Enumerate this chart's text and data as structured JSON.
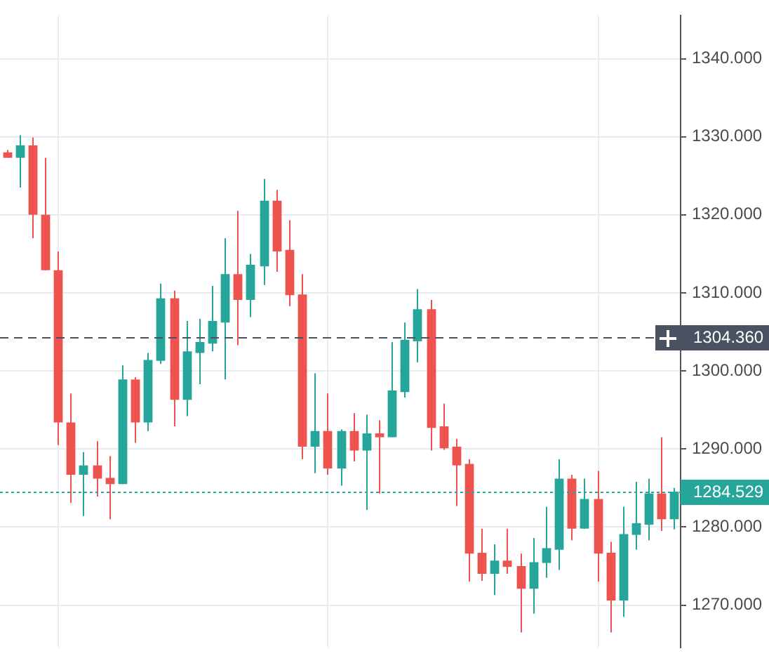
{
  "chart_data": {
    "type": "candlestick",
    "categories": [
      null,
      null,
      null,
      null,
      null,
      null,
      null,
      null,
      null,
      null,
      null,
      null,
      null,
      null,
      null,
      null,
      null,
      null,
      null,
      null,
      null,
      null,
      null,
      null,
      null,
      null,
      null,
      null,
      null,
      null,
      null,
      null,
      null,
      null,
      null,
      null,
      null,
      null,
      null,
      null,
      null,
      null,
      null,
      null,
      null,
      null,
      null,
      null,
      null,
      null,
      null,
      null,
      null
    ],
    "ohlc": [
      [
        1328.0,
        1328.3,
        1327.3,
        1327.3
      ],
      [
        1327.3,
        1330.2,
        1323.5,
        1328.9
      ],
      [
        1328.9,
        1329.9,
        1317.0,
        1320.0
      ],
      [
        1320.0,
        1327.3,
        1312.9,
        1312.9
      ],
      [
        1312.9,
        1315.3,
        1290.5,
        1293.4
      ],
      [
        1293.4,
        1297.1,
        1283.1,
        1286.7
      ],
      [
        1286.7,
        1289.6,
        1281.4,
        1287.9
      ],
      [
        1287.9,
        1291.0,
        1283.9,
        1286.2
      ],
      [
        1286.3,
        1289.1,
        1281.0,
        1285.5
      ],
      [
        1285.5,
        1300.7,
        1285.5,
        1298.9
      ],
      [
        1298.9,
        1299.2,
        1290.8,
        1293.4
      ],
      [
        1293.4,
        1302.3,
        1292.3,
        1301.4
      ],
      [
        1301.3,
        1311.2,
        1300.9,
        1309.3
      ],
      [
        1309.3,
        1310.3,
        1292.9,
        1296.3
      ],
      [
        1296.3,
        1306.4,
        1294.2,
        1302.5
      ],
      [
        1302.3,
        1306.7,
        1298.3,
        1303.7
      ],
      [
        1303.5,
        1310.9,
        1302.5,
        1306.4
      ],
      [
        1306.2,
        1317.0,
        1298.9,
        1312.4
      ],
      [
        1312.4,
        1320.5,
        1303.3,
        1309.1
      ],
      [
        1309.1,
        1315.0,
        1306.9,
        1313.6
      ],
      [
        1313.4,
        1324.6,
        1311.0,
        1321.8
      ],
      [
        1321.8,
        1323.2,
        1312.7,
        1315.3
      ],
      [
        1315.5,
        1319.3,
        1308.3,
        1309.7
      ],
      [
        1309.8,
        1312.4,
        1288.7,
        1290.3
      ],
      [
        1290.3,
        1299.7,
        1286.9,
        1292.3
      ],
      [
        1292.3,
        1297.1,
        1286.7,
        1287.5
      ],
      [
        1287.5,
        1292.5,
        1285.3,
        1292.3
      ],
      [
        1292.3,
        1294.6,
        1288.4,
        1289.8
      ],
      [
        1289.8,
        1294.4,
        1282.2,
        1292.0
      ],
      [
        1292.0,
        1293.7,
        1284.3,
        1291.5
      ],
      [
        1291.5,
        1303.7,
        1291.5,
        1297.5
      ],
      [
        1297.3,
        1306.2,
        1296.6,
        1304.0
      ],
      [
        1303.8,
        1310.5,
        1301.1,
        1307.9
      ],
      [
        1307.9,
        1309.1,
        1289.8,
        1292.7
      ],
      [
        1292.9,
        1295.8,
        1289.9,
        1290.1
      ],
      [
        1290.3,
        1291.3,
        1282.7,
        1287.9
      ],
      [
        1288.1,
        1288.7,
        1273.0,
        1276.6
      ],
      [
        1276.7,
        1279.8,
        1273.1,
        1274.0
      ],
      [
        1274.0,
        1277.8,
        1271.3,
        1275.7
      ],
      [
        1275.7,
        1279.8,
        1274.0,
        1274.9
      ],
      [
        1275.0,
        1276.6,
        1266.5,
        1272.1
      ],
      [
        1272.1,
        1278.6,
        1268.9,
        1275.5
      ],
      [
        1275.4,
        1282.6,
        1273.5,
        1277.3
      ],
      [
        1277.1,
        1288.7,
        1274.5,
        1286.2
      ],
      [
        1286.2,
        1286.7,
        1278.3,
        1279.8
      ],
      [
        1279.8,
        1286.2,
        1279.8,
        1283.6
      ],
      [
        1283.6,
        1287.2,
        1273.0,
        1276.6
      ],
      [
        1276.7,
        1278.1,
        1266.5,
        1270.6
      ],
      [
        1270.6,
        1282.6,
        1268.5,
        1279.1
      ],
      [
        1279.0,
        1285.8,
        1277.1,
        1280.5
      ],
      [
        1280.3,
        1286.2,
        1278.3,
        1284.3
      ],
      [
        1284.3,
        1291.5,
        1279.5,
        1281.0
      ],
      [
        1281.0,
        1285.0,
        1279.7,
        1284.529
      ]
    ],
    "colors": [
      "#ef5350",
      "#26a69a",
      "#ef5350",
      "#ef5350",
      "#ef5350",
      "#ef5350",
      "#26a69a",
      "#ef5350",
      "#ef5350",
      "#26a69a",
      "#ef5350",
      "#26a69a",
      "#26a69a",
      "#ef5350",
      "#26a69a",
      "#26a69a",
      "#26a69a",
      "#26a69a",
      "#ef5350",
      "#26a69a",
      "#26a69a",
      "#ef5350",
      "#ef5350",
      "#ef5350",
      "#26a69a",
      "#ef5350",
      "#26a69a",
      "#ef5350",
      "#26a69a",
      "#ef5350",
      "#26a69a",
      "#26a69a",
      "#26a69a",
      "#ef5350",
      "#ef5350",
      "#ef5350",
      "#ef5350",
      "#ef5350",
      "#26a69a",
      "#ef5350",
      "#ef5350",
      "#26a69a",
      "#26a69a",
      "#26a69a",
      "#ef5350",
      "#26a69a",
      "#ef5350",
      "#ef5350",
      "#26a69a",
      "#26a69a",
      "#26a69a",
      "#ef5350",
      "#26a69a"
    ],
    "ylim": [
      1264.6,
      1345.5
    ],
    "yticks": [
      {
        "value": 1270,
        "label": "1270.000"
      },
      {
        "value": 1280,
        "label": "1280.000"
      },
      {
        "value": 1290,
        "label": "1290.000"
      },
      {
        "value": 1300,
        "label": "1300.000"
      },
      {
        "value": 1310,
        "label": "1310.000"
      },
      {
        "value": 1320,
        "label": "1320.000"
      },
      {
        "value": 1330,
        "label": "1330.000"
      },
      {
        "value": 1340,
        "label": "1340.000"
      }
    ],
    "ref_lines": [
      {
        "axis": "y",
        "value": 1304.36,
        "label": "1304.360",
        "color": "#4a5160",
        "line_style": "dashed"
      },
      {
        "axis": "y",
        "value": 1284.529,
        "label": "1284.529",
        "color": "#26a69a",
        "line_style": "dotted"
      }
    ],
    "grid": true
  }
}
